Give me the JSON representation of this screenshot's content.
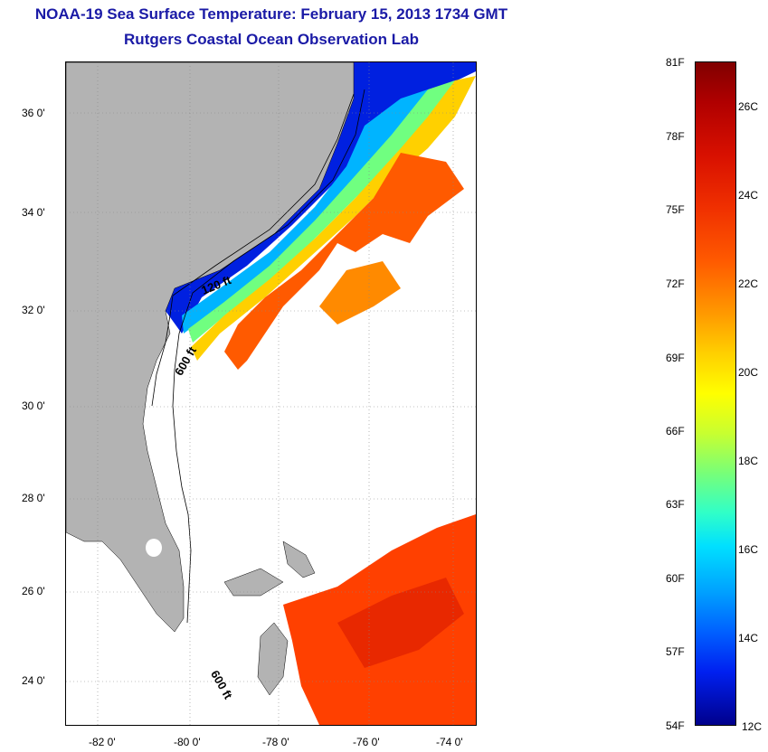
{
  "title": {
    "line1": "NOAA-19 Sea Surface Temperature:  February 15, 2013 1734 GMT",
    "line2": "Rutgers Coastal Ocean Observation Lab"
  },
  "map": {
    "lat_ticks": [
      "36 0'",
      "34 0'",
      "32 0'",
      "30 0'",
      "28 0'",
      "26 0'",
      "24 0'"
    ],
    "lon_ticks": [
      "-82 0'",
      "-80 0'",
      "-78 0'",
      "-76 0'",
      "-74 0'"
    ],
    "contours": [
      "120 ft",
      "600 ft",
      "600 ft"
    ]
  },
  "colorbar": {
    "fahrenheit": [
      "81F",
      "78F",
      "75F",
      "72F",
      "69F",
      "66F",
      "63F",
      "60F",
      "57F",
      "54F"
    ],
    "celsius": [
      "26C",
      "24C",
      "22C",
      "20C",
      "18C",
      "16C",
      "14C",
      "12C"
    ]
  },
  "colors": {
    "land": "#b3b3b3",
    "title": "#1a1aa6"
  }
}
